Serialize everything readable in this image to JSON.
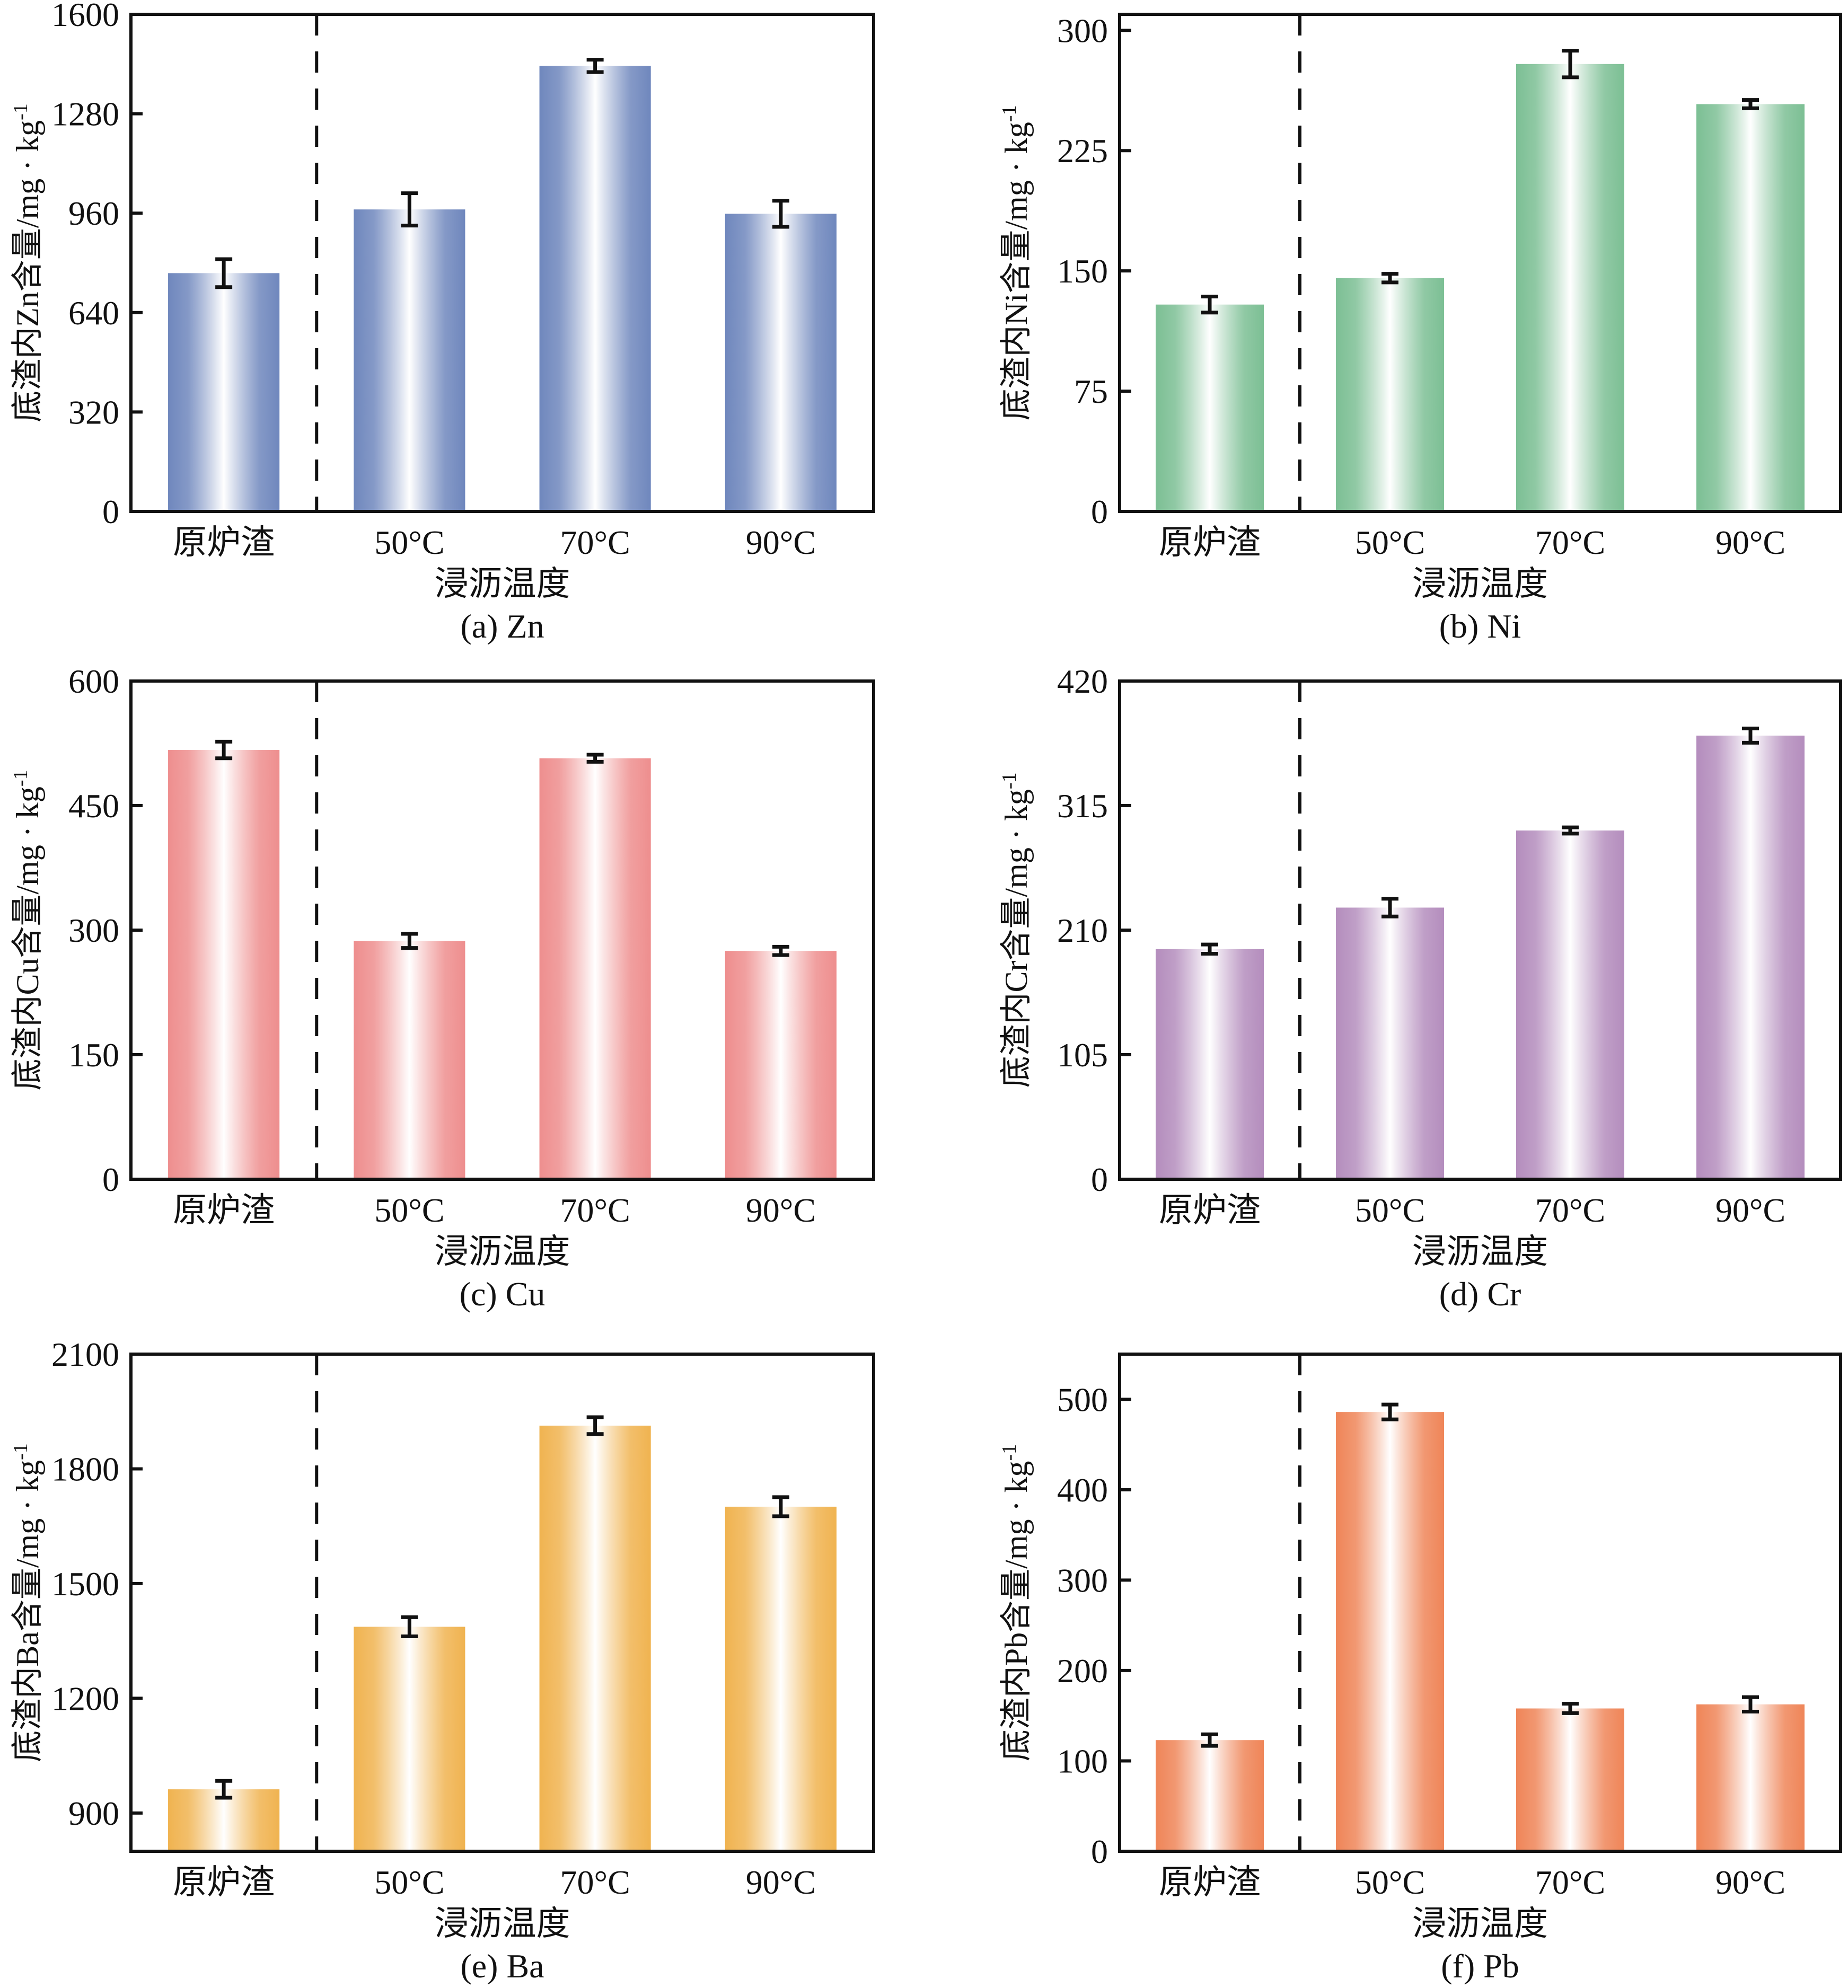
{
  "figure": {
    "categories": [
      "原炉渣",
      "50°C",
      "70°C",
      "90°C"
    ],
    "xlabel": "浸沥温度"
  },
  "chart_data": [
    {
      "type": "bar",
      "id": "zn",
      "caption": "(a) Zn",
      "element": "Zn",
      "title": "",
      "xlabel": "浸沥温度",
      "ylabel": "底渣内Zn含量/mg · kg⁻¹",
      "ylabel_prefix": "底渣内Zn含量/mg · kg",
      "ylabel_sup": "-1",
      "categories": [
        "原炉渣",
        "50°C",
        "70°C",
        "90°C"
      ],
      "values": [
        767,
        972,
        1434,
        958
      ],
      "errors": [
        45,
        52,
        20,
        42
      ],
      "ylim": [
        0,
        1600
      ],
      "yticks": [
        0,
        320,
        640,
        960,
        1280,
        1600
      ],
      "color": "#6f87bd",
      "separator_after_category": 0,
      "grid": false,
      "legend": "none"
    },
    {
      "type": "bar",
      "id": "ni",
      "caption": "(b) Ni",
      "element": "Ni",
      "title": "",
      "xlabel": "浸沥温度",
      "ylabel": "底渣内Ni含量/mg · kg⁻¹",
      "ylabel_prefix": "底渣内Ni含量/mg · kg",
      "ylabel_sup": "-1",
      "categories": [
        "原炉渣",
        "50°C",
        "70°C",
        "90°C"
      ],
      "values": [
        129,
        145.5,
        279,
        254
      ],
      "errors": [
        5,
        2.7,
        8.3,
        2.6
      ],
      "ylim": [
        0,
        310
      ],
      "yticks": [
        0,
        75,
        150,
        225,
        300
      ],
      "color": "#7cbf94",
      "separator_after_category": 0,
      "grid": false,
      "legend": "none"
    },
    {
      "type": "bar",
      "id": "cu",
      "caption": "(c) Cu",
      "element": "Cu",
      "title": "",
      "xlabel": "浸沥温度",
      "ylabel": "底渣内Cu含量/mg · kg⁻¹",
      "ylabel_prefix": "底渣内Cu含量/mg · kg",
      "ylabel_sup": "-1",
      "categories": [
        "原炉渣",
        "50°C",
        "70°C",
        "90°C"
      ],
      "values": [
        517,
        287,
        507,
        275
      ],
      "errors": [
        10,
        8.5,
        4.3,
        5
      ],
      "ylim": [
        0,
        600
      ],
      "yticks": [
        0,
        150,
        300,
        450,
        600
      ],
      "color": "#ee8e8e",
      "separator_after_category": 0,
      "grid": false,
      "legend": "none"
    },
    {
      "type": "bar",
      "id": "cr",
      "caption": "(d) Cr",
      "element": "Cr",
      "title": "",
      "xlabel": "浸沥温度",
      "ylabel": "底渣内Cr含量/mg · kg⁻¹",
      "ylabel_prefix": "底渣内Cr含量/mg · kg",
      "ylabel_sup": "-1",
      "categories": [
        "原炉渣",
        "50°C",
        "70°C",
        "90°C"
      ],
      "values": [
        194,
        229,
        294,
        374
      ],
      "errors": [
        3.9,
        7.5,
        2.6,
        6
      ],
      "ylim": [
        0,
        420
      ],
      "yticks": [
        0,
        105,
        210,
        315,
        420
      ],
      "color": "#b48dbd",
      "separator_after_category": 0,
      "grid": false,
      "legend": "none"
    },
    {
      "type": "bar",
      "id": "ba",
      "caption": "(e) Ba",
      "element": "Ba",
      "title": "",
      "xlabel": "浸沥温度",
      "ylabel": "底渣内Ba含量/mg · kg⁻¹",
      "ylabel_prefix": "底渣内Ba含量/mg · kg",
      "ylabel_sup": "-1",
      "categories": [
        "原炉渣",
        "50°C",
        "70°C",
        "90°C"
      ],
      "values": [
        962,
        1387,
        1913,
        1701
      ],
      "errors": [
        22,
        25,
        22,
        25
      ],
      "ylim": [
        800,
        2100
      ],
      "yticks": [
        900,
        1200,
        1500,
        1800,
        2100
      ],
      "color": "#f0b350",
      "separator_after_category": 0,
      "grid": false,
      "legend": "none"
    },
    {
      "type": "bar",
      "id": "pb",
      "caption": "(f) Pb",
      "element": "Pb",
      "title": "",
      "xlabel": "浸沥温度",
      "ylabel": "底渣内Pb含量/mg · kg⁻¹",
      "ylabel_prefix": "底渣内Pb含量/mg · kg",
      "ylabel_sup": "-1",
      "categories": [
        "原炉渣",
        "50°C",
        "70°C",
        "90°C"
      ],
      "values": [
        123,
        486,
        158,
        162.5
      ],
      "errors": [
        6.4,
        8.2,
        5.2,
        8
      ],
      "ylim": [
        0,
        550
      ],
      "yticks": [
        0,
        100,
        200,
        300,
        400,
        500
      ],
      "color": "#ef8558",
      "separator_after_category": 0,
      "grid": false,
      "legend": "none"
    }
  ]
}
